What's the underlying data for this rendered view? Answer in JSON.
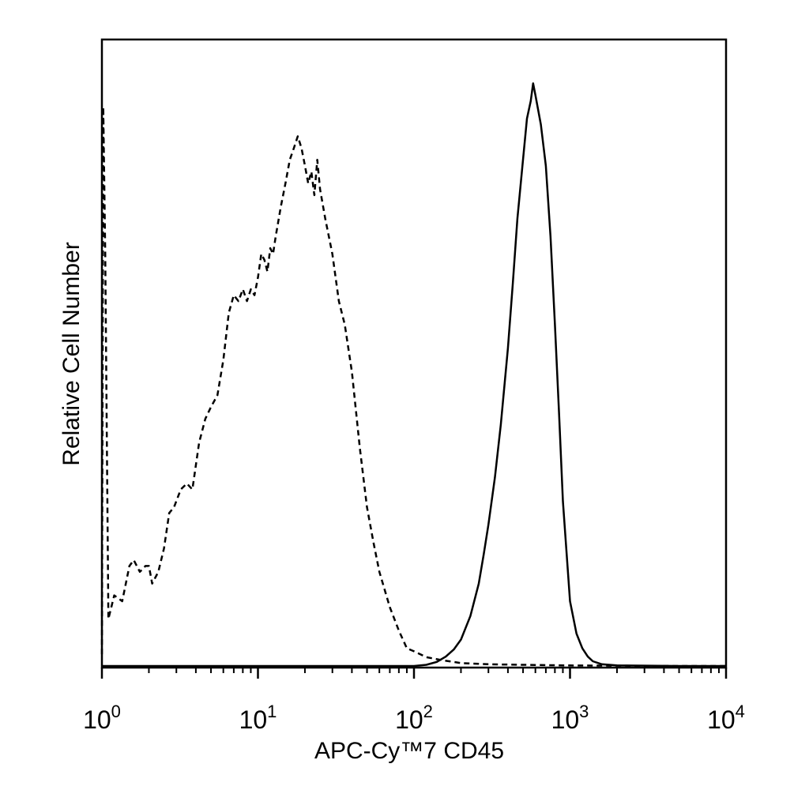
{
  "chart_data": {
    "type": "line",
    "title": "",
    "xlabel": "APC-Cy™7 CD45",
    "ylabel": "Relative Cell Number",
    "xscale": "log",
    "xlim": [
      1,
      10000
    ],
    "ylim": [
      0,
      100
    ],
    "grid": false,
    "legend": "none",
    "x_ticks": [
      {
        "base": "10",
        "exp": "0",
        "value": 1
      },
      {
        "base": "10",
        "exp": "1",
        "value": 10
      },
      {
        "base": "10",
        "exp": "2",
        "value": 100
      },
      {
        "base": "10",
        "exp": "3",
        "value": 1000
      },
      {
        "base": "10",
        "exp": "4",
        "value": 10000
      }
    ],
    "series": [
      {
        "style": "dashed",
        "color": "#000000",
        "x": [
          1.0,
          1.02,
          1.05,
          1.1,
          1.2,
          1.35,
          1.5,
          1.6,
          1.75,
          1.9,
          2.0,
          2.1,
          2.3,
          2.5,
          2.7,
          2.9,
          3.2,
          3.5,
          3.8,
          4.2,
          4.6,
          5.0,
          5.5,
          6.0,
          6.5,
          7.0,
          7.5,
          8.0,
          8.5,
          9.0,
          9.5,
          10.0,
          10.5,
          11.0,
          11.5,
          12.0,
          12.5,
          13.0,
          14.0,
          15.0,
          16.0,
          17.0,
          18.0,
          19.0,
          20.0,
          21.0,
          22.0,
          23.0,
          24.0,
          25.0,
          27.0,
          30.0,
          33.0,
          36.0,
          40.0,
          45.0,
          50.0,
          55.0,
          60.0,
          70.0,
          80.0,
          90.0,
          100.0,
          120.0,
          150.0,
          200.0,
          300.0,
          500.0,
          1000.0,
          2000.0,
          5000.0,
          10000.0
        ],
        "y": [
          2,
          95,
          70,
          8,
          12,
          11,
          17,
          18,
          16,
          17,
          17,
          14,
          16,
          20,
          26,
          27,
          30,
          31,
          30,
          38,
          42,
          44,
          46,
          52,
          60,
          63,
          62,
          64,
          62,
          64,
          63,
          66,
          70,
          69,
          67,
          71,
          70,
          73,
          78,
          82,
          86,
          88,
          90,
          88,
          85,
          82,
          84,
          80,
          86,
          81,
          76,
          70,
          62,
          58,
          50,
          37,
          27,
          21,
          16,
          10,
          6,
          3,
          2.5,
          1.5,
          1,
          0.5,
          0.3,
          0.2,
          0.1,
          0.05,
          0,
          0
        ]
      },
      {
        "style": "solid",
        "color": "#000000",
        "x": [
          1.0,
          10.0,
          100.0,
          120.0,
          140.0,
          160.0,
          180.0,
          200.0,
          230.0,
          260.0,
          280.0,
          300.0,
          330.0,
          360.0,
          400.0,
          430.0,
          460.0,
          500.0,
          530.0,
          560.0,
          580.0,
          600.0,
          650.0,
          700.0,
          750.0,
          800.0,
          850.0,
          900.0,
          1000.0,
          1100.0,
          1200.0,
          1300.0,
          1400.0,
          1600.0,
          2000.0,
          5000.0,
          10000.0
        ],
        "y": [
          0,
          0,
          0,
          0.2,
          0.7,
          1.6,
          2.8,
          4.5,
          8.5,
          14,
          19,
          24,
          32,
          41,
          54,
          65,
          76,
          86,
          93,
          96,
          99,
          97,
          92,
          85,
          73,
          58,
          43,
          28,
          11,
          5.5,
          3,
          1.6,
          0.8,
          0.3,
          0.1,
          0,
          0
        ]
      }
    ]
  }
}
